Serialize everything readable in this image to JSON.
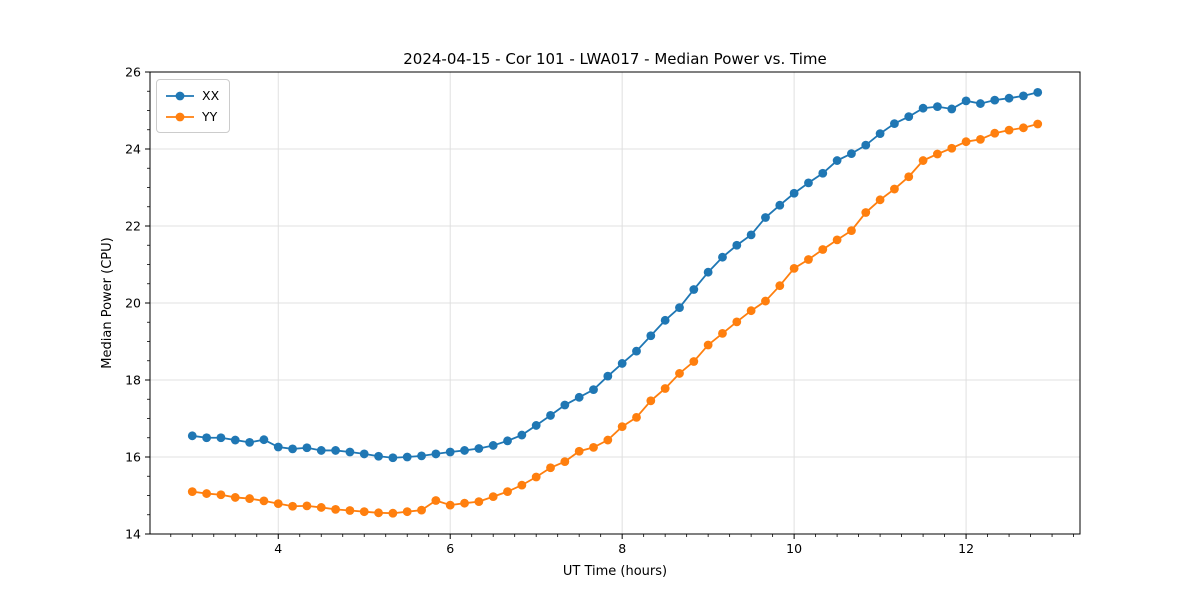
{
  "figure": {
    "background": "#ffffff"
  },
  "chart_data": {
    "type": "line",
    "title": "2024-04-15 - Cor 101 - LWA017 - Median Power vs. Time",
    "xlabel": "UT Time (hours)",
    "ylabel": "Median Power (CPU)",
    "xlim": [
      2.5083,
      13.325
    ],
    "ylim": [
      14,
      26
    ],
    "xticks": [
      4,
      6,
      8,
      10,
      12
    ],
    "yticks": [
      14,
      16,
      18,
      20,
      22,
      24,
      26
    ],
    "x_minor_step": 0.25,
    "y_minor_step": 0.5,
    "grid": true,
    "grid_color": "#e0e0e0",
    "legend_position": "upper left",
    "marker": "circle",
    "x": [
      3.0,
      3.1667,
      3.3333,
      3.5,
      3.6667,
      3.8333,
      4.0,
      4.1667,
      4.3333,
      4.5,
      4.6667,
      4.8333,
      5.0,
      5.1667,
      5.3333,
      5.5,
      5.6667,
      5.8333,
      6.0,
      6.1667,
      6.3333,
      6.5,
      6.6667,
      6.8333,
      7.0,
      7.1667,
      7.3333,
      7.5,
      7.6667,
      7.8333,
      8.0,
      8.1667,
      8.3333,
      8.5,
      8.6667,
      8.8333,
      9.0,
      9.1667,
      9.3333,
      9.5,
      9.6667,
      9.8333,
      10.0,
      10.1667,
      10.3333,
      10.5,
      10.6667,
      10.8333,
      11.0,
      11.1667,
      11.3333,
      11.5,
      11.6667,
      11.8333,
      12.0,
      12.1667,
      12.3333,
      12.5,
      12.6667,
      12.8333
    ],
    "series": [
      {
        "name": "XX",
        "color": "#1f77b4",
        "values": [
          16.55,
          16.5,
          16.5,
          16.44,
          16.38,
          16.45,
          16.26,
          16.21,
          16.24,
          16.17,
          16.17,
          16.13,
          16.08,
          16.02,
          15.98,
          16.0,
          16.03,
          16.08,
          16.13,
          16.17,
          16.22,
          16.3,
          16.42,
          16.57,
          16.82,
          17.08,
          17.35,
          17.55,
          17.75,
          18.1,
          18.43,
          18.75,
          19.15,
          19.55,
          19.88,
          20.35,
          20.8,
          21.19,
          21.5,
          21.77,
          22.22,
          22.54,
          22.85,
          23.12,
          23.37,
          23.7,
          23.88,
          24.1,
          24.4,
          24.66,
          24.84,
          25.06,
          25.1,
          25.04,
          25.25,
          25.18,
          25.27,
          25.32,
          25.38,
          25.47
        ]
      },
      {
        "name": "YY",
        "color": "#ff7f0e",
        "values": [
          15.1,
          15.05,
          15.02,
          14.95,
          14.92,
          14.86,
          14.79,
          14.72,
          14.73,
          14.69,
          14.64,
          14.61,
          14.58,
          14.55,
          14.54,
          14.58,
          14.62,
          14.87,
          14.75,
          14.8,
          14.84,
          14.97,
          15.1,
          15.27,
          15.48,
          15.72,
          15.88,
          16.15,
          16.25,
          16.44,
          16.79,
          17.03,
          17.46,
          17.78,
          18.17,
          18.48,
          18.91,
          19.21,
          19.51,
          19.8,
          20.05,
          20.45,
          20.9,
          21.13,
          21.39,
          21.64,
          21.88,
          22.35,
          22.68,
          22.96,
          23.28,
          23.7,
          23.87,
          24.02,
          24.19,
          24.25,
          24.41,
          24.49,
          24.55,
          24.65
        ]
      }
    ]
  }
}
